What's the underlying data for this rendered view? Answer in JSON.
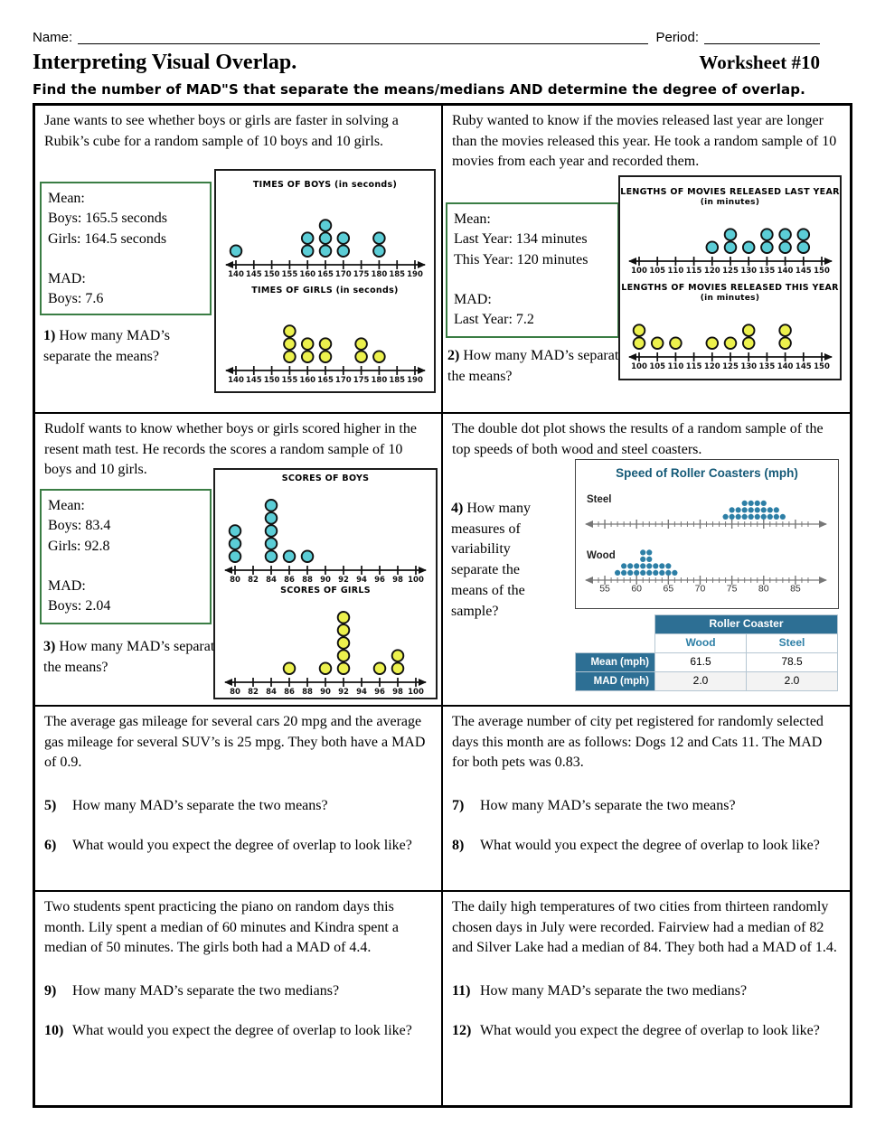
{
  "header": {
    "name_label": "Name:",
    "period_label": "Period:",
    "title": "Interpreting Visual Overlap.",
    "worksheet_number": "Worksheet #10",
    "instructions": "Find the number of MAD\"S that separate the means/medians AND determine the degree of overlap."
  },
  "problems": {
    "p1": {
      "text": "Jane wants to see whether boys or girls are faster in solving a Rubik’s cube for a random sample of 10 boys and 10 girls.",
      "stats": [
        "Mean:",
        "Boys: 165.5 seconds",
        "Girls: 164.5 seconds",
        "",
        "MAD:",
        "Boys: 7.6"
      ],
      "q": {
        "num": "1)",
        "text": "How many MAD’s separate the means?"
      }
    },
    "p2": {
      "text": "Ruby wanted to know if the movies released last year are longer than the movies released this year. He took a random sample of 10 movies from each year and recorded them.",
      "stats": [
        "Mean:",
        "Last Year: 134 minutes",
        "This Year: 120 minutes",
        "",
        "MAD:",
        "Last Year: 7.2"
      ],
      "q": {
        "num": "2)",
        "text": "How many MAD’s separate the means?"
      }
    },
    "p3": {
      "text": "Rudolf wants to know whether boys or girls scored higher in the resent math test. He records the scores a random sample of 10 boys and 10 girls.",
      "stats": [
        "Mean:",
        "Boys: 83.4",
        "Girls: 92.8",
        "",
        "MAD:",
        "Boys: 2.04"
      ],
      "q": {
        "num": "3)",
        "text": "How many MAD’s separate the means?"
      }
    },
    "p4": {
      "text": "The double dot plot shows the results of a random sample of the top speeds of both wood and steel coasters.",
      "q": {
        "num": "4)",
        "text": "How many measures of variability separate the means of the sample?"
      }
    },
    "p5_6": {
      "text": "The average gas mileage for several cars 20 mpg and the average gas mileage for several SUV’s is 25 mpg. They both have a MAD of 0.9.",
      "questions": [
        {
          "num": "5)",
          "text": "How many MAD’s separate the two means?"
        },
        {
          "num": "6)",
          "text": "What would you expect the degree of overlap to look like?"
        }
      ]
    },
    "p7_8": {
      "text": "The average number of city pet registered for randomly selected days this month are as follows: Dogs 12 and Cats 11. The MAD for both pets was 0.83.",
      "questions": [
        {
          "num": "7)",
          "text": "How many MAD’s separate the two means?"
        },
        {
          "num": "8)",
          "text": "What would you expect the degree of overlap to look like?"
        }
      ]
    },
    "p9_10": {
      "text": "Two students spent practicing the piano on random days this month. Lily spent a median of 60 minutes and Kindra spent a median of 50 minutes. The girls both had a MAD of 4.4.",
      "questions": [
        {
          "num": "9)",
          "text": "How many MAD’s separate the two medians?"
        },
        {
          "num": "10)",
          "text": "What would you expect the degree of overlap to look like?"
        }
      ]
    },
    "p11_12": {
      "text": "The daily high temperatures of two cities from thirteen randomly chosen days in July were recorded. Fairview had a median of 82 and Silver Lake had a median of 84. They both had a MAD of 1.4.",
      "questions": [
        {
          "num": "11)",
          "text": "How many MAD’s separate the two medians?"
        },
        {
          "num": "12)",
          "text": "What would you expect the degree of overlap to look like?"
        }
      ]
    }
  },
  "chart_data": [
    {
      "type": "dotplot_pair",
      "plots": [
        {
          "title": "TIMES OF BOYS (in seconds)",
          "style": "worksheet",
          "ticks": [
            140,
            145,
            150,
            155,
            160,
            165,
            170,
            175,
            180,
            185,
            190
          ],
          "counts": {
            "140": 1,
            "160": 2,
            "165": 3,
            "170": 2,
            "180": 2
          },
          "dot_color": "#5bcdd6"
        },
        {
          "title": "TIMES OF GIRLS (in seconds)",
          "style": "worksheet",
          "ticks": [
            140,
            145,
            150,
            155,
            160,
            165,
            170,
            175,
            180,
            185,
            190
          ],
          "counts": {
            "155": 3,
            "160": 2,
            "165": 2,
            "175": 2,
            "180": 1
          },
          "dot_color": "#ecf14d"
        }
      ]
    },
    {
      "type": "dotplot_pair",
      "plots": [
        {
          "title": "LENGTHS OF MOVIES RELEASED LAST YEAR",
          "subtitle": "(in minutes)",
          "style": "worksheet",
          "ticks": [
            100,
            105,
            110,
            115,
            120,
            125,
            130,
            135,
            140,
            145,
            150
          ],
          "counts": {
            "120": 1,
            "125": 2,
            "130": 1,
            "135": 2,
            "140": 2,
            "145": 2
          },
          "dot_color": "#5bcdd6"
        },
        {
          "title": "LENGTHS OF MOVIES RELEASED THIS YEAR",
          "subtitle": "(in minutes)",
          "style": "worksheet",
          "ticks": [
            100,
            105,
            110,
            115,
            120,
            125,
            130,
            135,
            140,
            145,
            150
          ],
          "counts": {
            "100": 2,
            "105": 1,
            "110": 1,
            "120": 1,
            "125": 1,
            "130": 2,
            "140": 2
          },
          "dot_color": "#ecf14d"
        }
      ]
    },
    {
      "type": "dotplot_pair",
      "plots": [
        {
          "title": "SCORES OF BOYS",
          "style": "worksheet",
          "ticks": [
            80,
            82,
            84,
            86,
            88,
            90,
            92,
            94,
            96,
            98,
            100
          ],
          "counts": {
            "80": 3,
            "84": 5,
            "86": 1,
            "88": 1
          },
          "dot_color": "#5bcdd6"
        },
        {
          "title": "SCORES OF GIRLS",
          "style": "worksheet",
          "ticks": [
            80,
            82,
            84,
            86,
            88,
            90,
            92,
            94,
            96,
            98,
            100
          ],
          "counts": {
            "86": 1,
            "90": 1,
            "92": 5,
            "96": 1,
            "98": 2
          },
          "dot_color": "#ecf14d"
        }
      ]
    },
    {
      "type": "double_dotplot",
      "title": "Speed of Roller Coasters (mph)",
      "series": [
        {
          "label": "Steel",
          "style": "coaster",
          "axis_min": 53,
          "axis_max": 88,
          "minor_from": 54,
          "minor_to": 87,
          "major_step": 5,
          "show_labels": false,
          "counts": {
            "74": 1,
            "75": 2,
            "76": 2,
            "77": 3,
            "78": 3,
            "79": 3,
            "80": 3,
            "81": 2,
            "82": 2,
            "83": 1
          },
          "dot_color": "#2d7fa6"
        },
        {
          "label": "Wood",
          "style": "coaster",
          "axis_min": 53,
          "axis_max": 88,
          "minor_from": 54,
          "minor_to": 87,
          "major_step": 5,
          "show_labels": true,
          "counts": {
            "57": 1,
            "58": 2,
            "59": 2,
            "60": 2,
            "61": 4,
            "62": 4,
            "63": 2,
            "64": 2,
            "65": 2,
            "66": 1
          },
          "dot_color": "#2d7fa6"
        }
      ],
      "table": {
        "header": "Roller Coaster",
        "columns": [
          "Wood",
          "Steel"
        ],
        "rows": [
          {
            "label": "Mean (mph)",
            "values": [
              "61.5",
              "78.5"
            ]
          },
          {
            "label": "MAD (mph)",
            "values": [
              "2.0",
              "2.0"
            ]
          }
        ]
      }
    }
  ]
}
